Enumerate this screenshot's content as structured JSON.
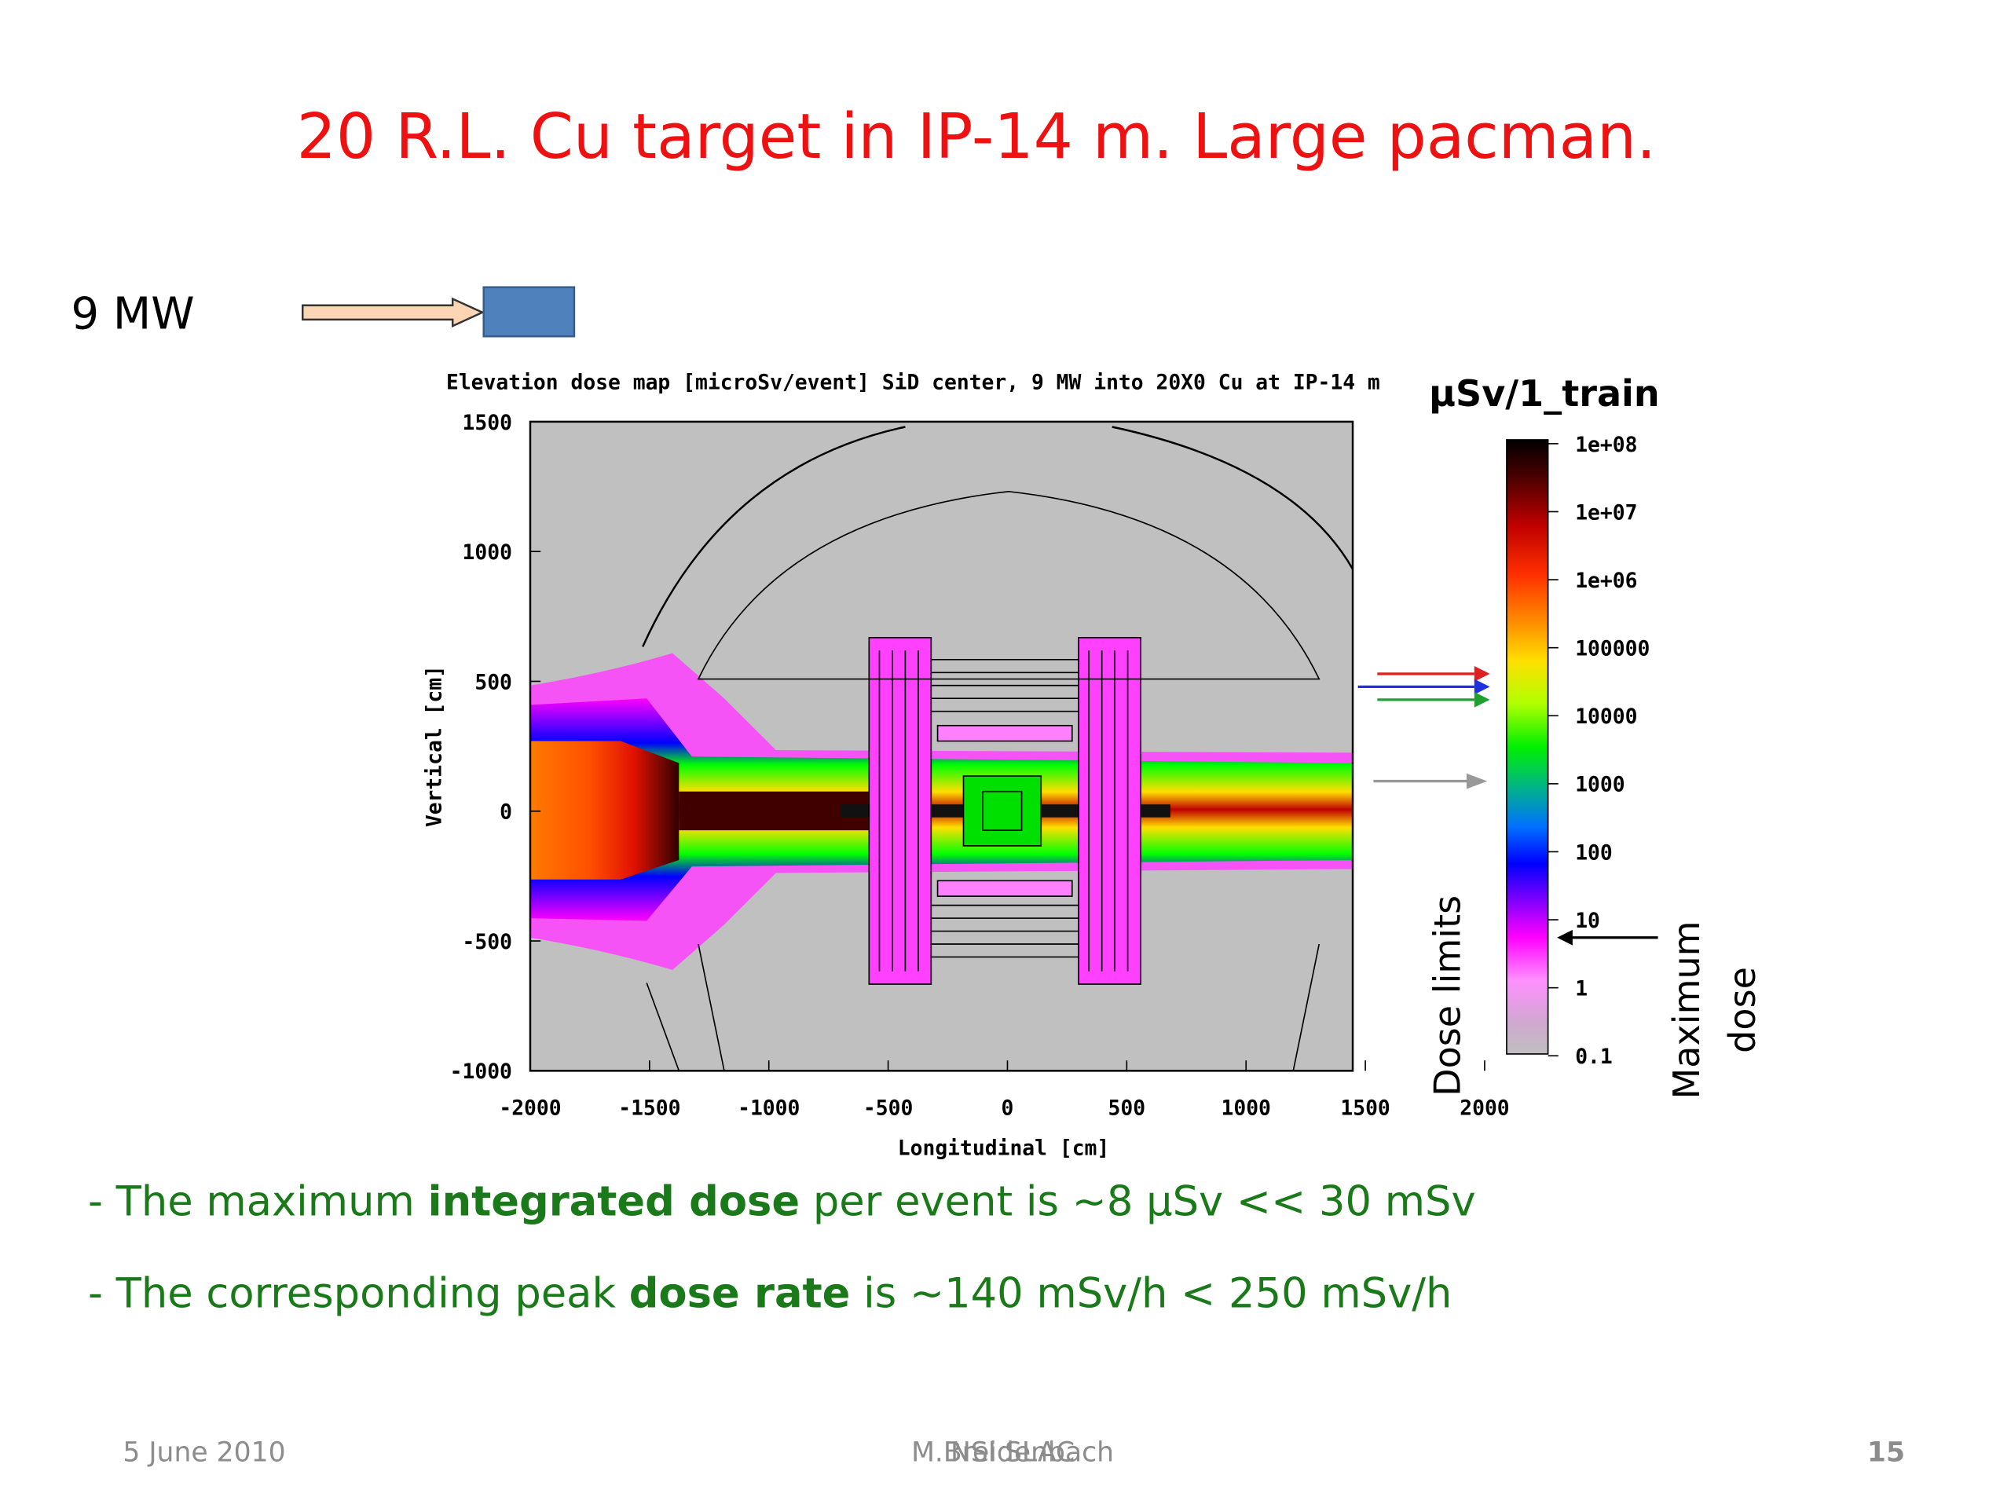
{
  "title": "20 R.L. Cu target in IP-14 m. Large pacman.",
  "beam": {
    "label": "9 MW"
  },
  "plot": {
    "title": "Elevation dose map [microSv/event] SiD center, 9 MW into 20X0 Cu at IP-14 m",
    "y_label": "Vertical [cm]",
    "x_label": "Longitudinal [cm]",
    "x_ticks": [
      "-2000",
      "-1500",
      "-1000",
      "-500",
      "0",
      "500",
      "1000",
      "1500",
      "2000"
    ],
    "y_ticks": [
      "1500",
      "1000",
      "500",
      "0",
      "-500",
      "-1000"
    ],
    "colorbar": {
      "title": "µSv/1_train",
      "ticks": [
        "1e+08",
        "1e+07",
        "1e+06",
        "100000",
        "10000",
        "1000",
        "100",
        "10",
        "1",
        "0.1"
      ]
    },
    "annotations": {
      "dose_limits": "Dose limits",
      "maximum_dose": [
        "Maximum",
        "dose"
      ]
    }
  },
  "bullets": [
    [
      "- The maximum ",
      "integrated dose",
      " per event is ~8 µSv << 30 mSv"
    ],
    [
      "- The corresponding peak ",
      "dose rate",
      " is ~140 mSv/h < 250 mSv/h"
    ]
  ],
  "footer": {
    "date": "5 June 2010",
    "author": "M.Breidenbach",
    "organization": "NSI SLAC",
    "page": "15"
  }
}
